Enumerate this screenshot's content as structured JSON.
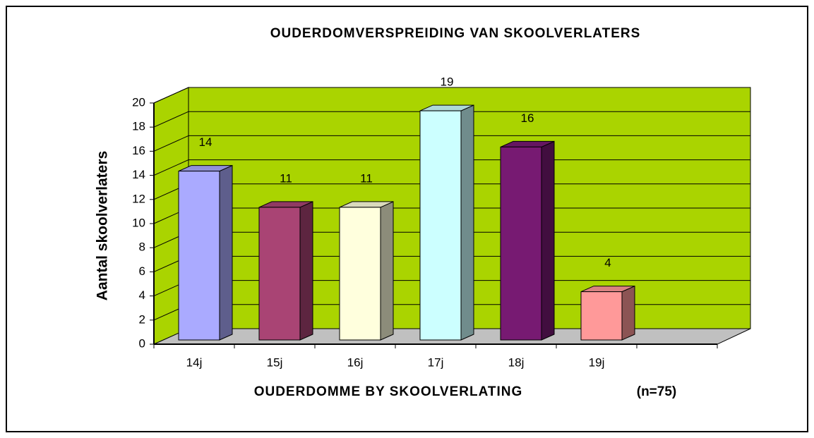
{
  "chart_data": {
    "type": "bar3d",
    "title": "OUDERDOMVERSPREIDING VAN SKOOLVERLATERS",
    "x_label": "OUDERDOMME BY SKOOLVERLATING",
    "annotation": "(n=75)",
    "y_label": "Aantal skoolverlaters",
    "categories": [
      "14j",
      "15j",
      "16j",
      "17j",
      "18j",
      "19j",
      null
    ],
    "values": [
      14,
      11,
      11,
      19,
      16,
      4,
      null
    ],
    "colors": [
      "#aaaaff",
      "#a94474",
      "#ffffdd",
      "#ccffff",
      "#771a72",
      "#ff9999",
      null
    ],
    "wall_color": "#aad400",
    "floor_color": "#c0c0c0",
    "ylim": [
      0,
      20
    ],
    "yticks": [
      0,
      2,
      4,
      6,
      8,
      10,
      12,
      14,
      16,
      18,
      20
    ],
    "grid": true
  }
}
